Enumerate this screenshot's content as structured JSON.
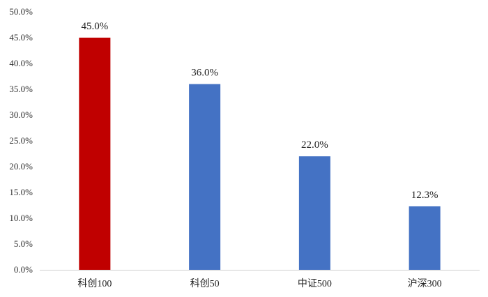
{
  "chart_data": {
    "type": "bar",
    "title": "",
    "xlabel": "",
    "ylabel": "",
    "categories": [
      "科创100",
      "科创50",
      "中证500",
      "沪深300"
    ],
    "values": [
      45.0,
      36.0,
      22.0,
      12.3
    ],
    "value_labels": [
      "45.0%",
      "36.0%",
      "22.0%",
      "12.3%"
    ],
    "bar_colors": [
      "#C00000",
      "#4472C4",
      "#4472C4",
      "#4472C4"
    ],
    "ylim": [
      0,
      50
    ],
    "yticks": [
      0,
      5,
      10,
      15,
      20,
      25,
      30,
      35,
      40,
      45,
      50
    ],
    "ytick_labels": [
      "0.0%",
      "5.0%",
      "10.0%",
      "15.0%",
      "20.0%",
      "25.0%",
      "30.0%",
      "35.0%",
      "40.0%",
      "45.0%",
      "50.0%"
    ],
    "grid": false,
    "legend": "none"
  }
}
